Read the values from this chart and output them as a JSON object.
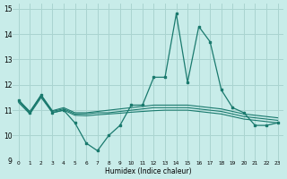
{
  "xlabel": "Humidex (Indice chaleur)",
  "xlim": [
    -0.5,
    23.5
  ],
  "ylim": [
    9,
    15.2
  ],
  "yticks": [
    9,
    10,
    11,
    12,
    13,
    14,
    15
  ],
  "xticks": [
    0,
    1,
    2,
    3,
    4,
    5,
    6,
    7,
    8,
    9,
    10,
    11,
    12,
    13,
    14,
    15,
    16,
    17,
    18,
    19,
    20,
    21,
    22,
    23
  ],
  "bg_color": "#c8ece9",
  "grid_color": "#aad4d0",
  "line_color": "#1a7a6e",
  "line1_x": [
    0,
    1,
    2,
    3,
    4,
    5,
    6,
    7,
    8,
    9,
    10,
    11,
    12,
    13,
    14,
    15,
    16,
    17,
    18,
    19,
    20,
    21,
    22,
    23
  ],
  "line1_y": [
    11.4,
    10.9,
    11.6,
    10.9,
    11.0,
    10.5,
    9.7,
    9.4,
    10.0,
    10.4,
    11.2,
    11.2,
    12.3,
    12.3,
    14.8,
    12.1,
    14.3,
    13.7,
    11.8,
    11.1,
    10.9,
    10.4,
    10.4,
    10.5
  ],
  "line2_x": [
    0,
    1,
    2,
    3,
    4,
    5,
    6,
    7,
    8,
    9,
    10,
    11,
    12,
    13,
    14,
    15,
    16,
    17,
    18,
    19,
    20,
    21,
    22,
    23
  ],
  "line2_y": [
    11.35,
    10.9,
    11.55,
    10.95,
    11.05,
    10.85,
    10.85,
    10.9,
    10.9,
    10.95,
    11.0,
    11.05,
    11.1,
    11.1,
    11.1,
    11.1,
    11.05,
    11.0,
    10.95,
    10.85,
    10.75,
    10.7,
    10.65,
    10.6
  ],
  "line3_x": [
    0,
    1,
    2,
    3,
    4,
    5,
    6,
    7,
    8,
    9,
    10,
    11,
    12,
    13,
    14,
    15,
    16,
    17,
    18,
    19,
    20,
    21,
    22,
    23
  ],
  "line3_y": [
    11.4,
    10.95,
    11.6,
    10.98,
    11.1,
    10.9,
    10.9,
    10.95,
    11.0,
    11.05,
    11.1,
    11.15,
    11.2,
    11.2,
    11.2,
    11.2,
    11.15,
    11.1,
    11.05,
    10.95,
    10.85,
    10.8,
    10.75,
    10.7
  ],
  "line4_x": [
    0,
    1,
    2,
    3,
    4,
    5,
    6,
    7,
    8,
    9,
    10,
    11,
    12,
    13,
    14,
    15,
    16,
    17,
    18,
    19,
    20,
    21,
    22,
    23
  ],
  "line4_y": [
    11.3,
    10.85,
    11.5,
    10.9,
    11.0,
    10.8,
    10.78,
    10.82,
    10.85,
    10.88,
    10.92,
    10.95,
    10.98,
    11.0,
    11.0,
    11.0,
    10.95,
    10.9,
    10.85,
    10.75,
    10.65,
    10.6,
    10.55,
    10.5
  ]
}
